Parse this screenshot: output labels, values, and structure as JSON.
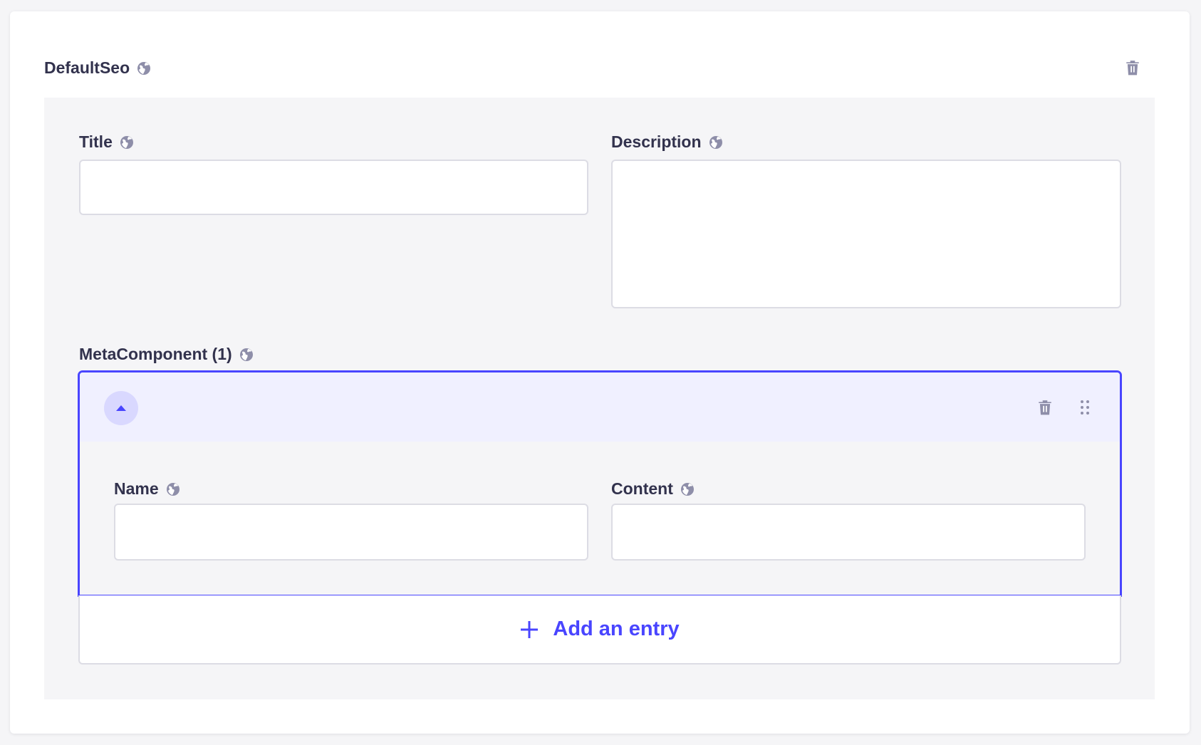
{
  "component": {
    "title": "DefaultSeo",
    "delete_icon": "trash-icon",
    "locale_icon": "globe-icon"
  },
  "fields": {
    "title": {
      "label": "Title",
      "value": ""
    },
    "description": {
      "label": "Description",
      "value": ""
    }
  },
  "repeatable": {
    "label": "MetaComponent (1)",
    "entry": {
      "toggle_icon": "caret-up-icon",
      "name": {
        "label": "Name",
        "value": ""
      },
      "content": {
        "label": "Content",
        "value": ""
      }
    },
    "add_label": "Add an entry"
  },
  "colors": {
    "accent": "#4945ff",
    "text": "#32324d",
    "icon": "#8e8ea9"
  }
}
